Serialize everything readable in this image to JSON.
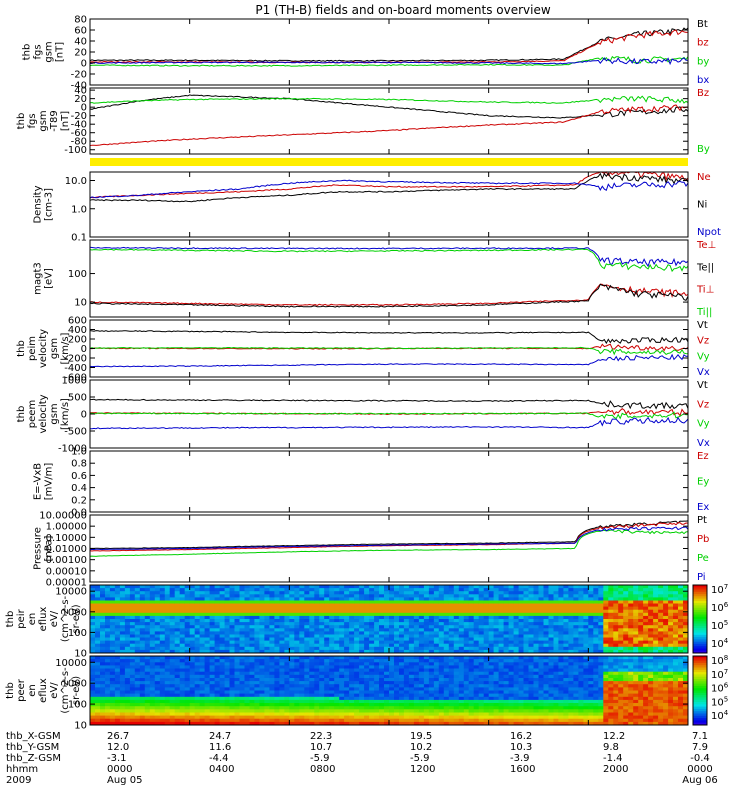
{
  "title": "P1 (TH-B) fields and on-board moments overview",
  "colors": {
    "black": "#000000",
    "red": "#cc0000",
    "green": "#00d000",
    "blue": "#0000cc",
    "yellow": "#ffee00"
  },
  "chart_data": [
    {
      "id": "fgs_gsm",
      "type": "line",
      "ylabel": [
        "thb",
        "fgs",
        "gsm",
        "[nT]"
      ],
      "yticks": [
        80,
        60,
        40,
        20,
        0,
        -20,
        -40
      ],
      "ylim": [
        -40,
        80
      ],
      "legend": [
        {
          "name": "Bt",
          "color": "black"
        },
        {
          "name": "bz",
          "color": "red"
        },
        {
          "name": "by",
          "color": "green"
        },
        {
          "name": "bx",
          "color": "blue"
        }
      ],
      "x_hours": [
        0,
        4,
        8,
        12,
        16,
        19,
        20.5,
        22,
        24
      ],
      "series": [
        {
          "name": "Bt",
          "color": "black",
          "y": [
            5,
            5,
            4,
            4,
            5,
            7,
            40,
            52,
            60
          ]
        },
        {
          "name": "bz",
          "color": "red",
          "y": [
            2,
            2,
            1,
            1,
            2,
            4,
            38,
            50,
            58
          ]
        },
        {
          "name": "by",
          "color": "green",
          "y": [
            -4,
            -5,
            -5,
            -4,
            -3,
            -4,
            10,
            5,
            8
          ]
        },
        {
          "name": "bx",
          "color": "blue",
          "y": [
            0,
            1,
            1,
            1,
            0,
            -1,
            5,
            2,
            4
          ]
        }
      ]
    },
    {
      "id": "fgs_gse",
      "type": "line",
      "ylabel": [
        "thb",
        "fgs",
        "gsm",
        "-T89",
        "[nT]"
      ],
      "yticks": [
        40,
        20,
        0,
        -20,
        -40,
        -60,
        -80,
        -100
      ],
      "ylim": [
        -110,
        45
      ],
      "legend": [
        {
          "name": "Bz",
          "color": "red"
        },
        {
          "name": "By",
          "color": "green"
        }
      ],
      "x_hours": [
        0,
        2,
        4,
        8,
        12,
        14,
        16,
        19,
        20.5,
        22,
        24
      ],
      "series": [
        {
          "name": "black",
          "color": "black",
          "y": [
            -5,
            15,
            28,
            20,
            0,
            -10,
            -20,
            -25,
            -18,
            -12,
            -5
          ]
        },
        {
          "name": "Bz",
          "color": "red",
          "y": [
            -90,
            -82,
            -75,
            -65,
            -55,
            -48,
            -42,
            -35,
            -10,
            -5,
            0
          ]
        },
        {
          "name": "By",
          "color": "green",
          "y": [
            10,
            15,
            18,
            20,
            18,
            15,
            12,
            10,
            18,
            20,
            15
          ]
        }
      ]
    },
    {
      "id": "density",
      "type": "line",
      "scale": "log",
      "ylabel": [
        "Density",
        "[cm-3]"
      ],
      "yticks": [
        "10.0",
        "1.0",
        "0.1"
      ],
      "ylim": [
        0.1,
        20
      ],
      "legend": [
        {
          "name": "Ne",
          "color": "red"
        },
        {
          "name": "Ni",
          "color": "black"
        },
        {
          "name": "Npot",
          "color": "blue"
        }
      ],
      "x_hours": [
        0,
        2,
        4,
        6,
        8,
        10,
        12,
        16,
        19.5,
        20.5,
        22,
        24
      ],
      "series": [
        {
          "name": "Ne",
          "color": "red",
          "y": [
            2.5,
            3,
            3.5,
            4,
            5,
            7,
            6,
            6,
            7,
            20,
            18,
            12
          ]
        },
        {
          "name": "Ni",
          "color": "black",
          "y": [
            2,
            2,
            1.8,
            2.5,
            3,
            4,
            4,
            5,
            5,
            15,
            13,
            9
          ]
        },
        {
          "name": "Npot",
          "color": "blue",
          "y": [
            2.5,
            3,
            4,
            5,
            8,
            10,
            9,
            8,
            8,
            6,
            7,
            8
          ]
        }
      ]
    },
    {
      "id": "temperature",
      "type": "line",
      "scale": "log",
      "ylabel": [
        "magt3",
        "[eV]"
      ],
      "yticks": [
        "100",
        "10"
      ],
      "ylim": [
        3,
        1500
      ],
      "legend": [
        {
          "name": "Te⊥",
          "color": "red"
        },
        {
          "name": "Te||",
          "color": "black"
        },
        {
          "name": "Ti⊥",
          "color": "red"
        },
        {
          "name": "Ti||",
          "color": "green"
        }
      ],
      "x_hours": [
        0,
        4,
        8,
        12,
        16,
        20,
        20.5,
        22,
        24
      ],
      "series": [
        {
          "name": "Ti",
          "color": "blue",
          "y": [
            800,
            780,
            760,
            760,
            770,
            780,
            300,
            250,
            250
          ]
        },
        {
          "name": "Ti||",
          "color": "green",
          "y": [
            700,
            650,
            600,
            620,
            650,
            700,
            200,
            180,
            150
          ]
        },
        {
          "name": "Te",
          "color": "red",
          "y": [
            10,
            9,
            8,
            8,
            9,
            12,
            40,
            25,
            20
          ]
        },
        {
          "name": "Te||",
          "color": "black",
          "y": [
            9,
            8,
            7,
            7,
            8,
            11,
            35,
            20,
            15
          ]
        }
      ]
    },
    {
      "id": "peim_velocity",
      "type": "line",
      "ylabel": [
        "thb",
        "peim",
        "velocity",
        "gsm",
        "[km/s]"
      ],
      "yticks": [
        600,
        400,
        200,
        0,
        -200,
        -400,
        -600
      ],
      "ylim": [
        -600,
        600
      ],
      "legend": [
        {
          "name": "Vt",
          "color": "black"
        },
        {
          "name": "Vz",
          "color": "red"
        },
        {
          "name": "Vy",
          "color": "green"
        },
        {
          "name": "Vx",
          "color": "blue"
        }
      ],
      "x_hours": [
        0,
        4,
        8,
        12,
        16,
        20,
        20.5,
        22,
        24
      ],
      "series": [
        {
          "name": "Vt",
          "color": "black",
          "y": [
            370,
            360,
            340,
            330,
            330,
            340,
            150,
            170,
            190
          ]
        },
        {
          "name": "Vz",
          "color": "red",
          "y": [
            5,
            0,
            -5,
            0,
            5,
            0,
            50,
            20,
            0
          ]
        },
        {
          "name": "Vy",
          "color": "green",
          "y": [
            10,
            15,
            10,
            5,
            10,
            15,
            -60,
            -80,
            -70
          ]
        },
        {
          "name": "Vx",
          "color": "blue",
          "y": [
            -380,
            -370,
            -350,
            -330,
            -330,
            -340,
            -220,
            -200,
            -180
          ]
        }
      ]
    },
    {
      "id": "peem_velocity",
      "type": "line",
      "ylabel": [
        "thb",
        "peem",
        "velocity",
        "gsm",
        "[km/s]"
      ],
      "yticks": [
        1000,
        500,
        0,
        -500,
        -1000
      ],
      "ylim": [
        -1000,
        1000
      ],
      "legend": [
        {
          "name": "Vt",
          "color": "black"
        },
        {
          "name": "Vz",
          "color": "red"
        },
        {
          "name": "Vy",
          "color": "green"
        },
        {
          "name": "Vx",
          "color": "blue"
        }
      ],
      "x_hours": [
        0,
        4,
        8,
        12,
        16,
        20,
        20.5,
        22,
        24
      ],
      "series": [
        {
          "name": "Vt",
          "color": "black",
          "y": [
            420,
            410,
            400,
            390,
            380,
            400,
            300,
            250,
            230
          ]
        },
        {
          "name": "Vz",
          "color": "red",
          "y": [
            30,
            20,
            10,
            0,
            10,
            20,
            80,
            60,
            40
          ]
        },
        {
          "name": "Vy",
          "color": "green",
          "y": [
            20,
            15,
            10,
            10,
            15,
            20,
            -100,
            -50,
            -30
          ]
        },
        {
          "name": "Vx",
          "color": "blue",
          "y": [
            -420,
            -410,
            -400,
            -390,
            -380,
            -400,
            -250,
            -200,
            -180
          ]
        }
      ]
    },
    {
      "id": "efield",
      "type": "line",
      "ylabel": [
        "E=-VxB",
        "[mV/m]"
      ],
      "yticks": [
        "1.0",
        "0.8",
        "0.6",
        "0.4",
        "0.2",
        "0.0"
      ],
      "ylim": [
        0,
        1
      ],
      "legend": [
        {
          "name": "Ez",
          "color": "red"
        },
        {
          "name": "Ey",
          "color": "green"
        },
        {
          "name": "Ex",
          "color": "blue"
        }
      ],
      "series": []
    },
    {
      "id": "pressure",
      "type": "line",
      "scale": "log",
      "ylabel": [
        "Pressure",
        "[nPa]"
      ],
      "yticks": [
        "10.00000",
        "1.00000",
        "0.10000",
        "0.01000",
        "0.00100",
        "0.00010",
        "0.00001"
      ],
      "ylim": [
        1e-05,
        10
      ],
      "legend": [
        {
          "name": "Pt",
          "color": "black"
        },
        {
          "name": "Pb",
          "color": "red"
        },
        {
          "name": "Pe",
          "color": "green"
        },
        {
          "name": "Pi",
          "color": "blue"
        }
      ],
      "x_hours": [
        0,
        4,
        8,
        12,
        16,
        19.5,
        20.5,
        22,
        24
      ],
      "series": [
        {
          "name": "Pt",
          "color": "black",
          "y": [
            0.01,
            0.012,
            0.018,
            0.025,
            0.03,
            0.04,
            0.9,
            1.5,
            2.5
          ]
        },
        {
          "name": "Pb",
          "color": "red",
          "y": [
            0.006,
            0.008,
            0.012,
            0.018,
            0.022,
            0.03,
            0.7,
            1.2,
            2
          ]
        },
        {
          "name": "Pe",
          "color": "green",
          "y": [
            0.002,
            0.003,
            0.005,
            0.007,
            0.008,
            0.01,
            0.4,
            0.3,
            0.25
          ]
        },
        {
          "name": "Pi",
          "color": "blue",
          "y": [
            0.008,
            0.01,
            0.015,
            0.02,
            0.025,
            0.03,
            0.5,
            0.6,
            0.7
          ]
        }
      ]
    },
    {
      "id": "peir_spectrogram",
      "type": "heatmap",
      "ylabel": [
        "thb",
        "peir",
        "en",
        "eflux",
        "eV/",
        "(cm^2-s-",
        "sr-eV)"
      ],
      "yticks": [
        10000,
        1000,
        100,
        10
      ],
      "ylim": [
        10,
        20000
      ],
      "colorbar_ticks": [
        "10^7",
        "10^6",
        "10^5",
        "10^4"
      ]
    },
    {
      "id": "peer_spectrogram",
      "type": "heatmap",
      "ylabel": [
        "thb",
        "peer",
        "en",
        "eflux",
        "eV/",
        "(cm^2-s-",
        "sr-eV)"
      ],
      "yticks": [
        10000,
        1000,
        100,
        10
      ],
      "ylim": [
        10,
        20000
      ],
      "colorbar_ticks": [
        "10^8",
        "10^7",
        "10^6",
        "10^5",
        "10^4"
      ]
    }
  ],
  "orbit_table": {
    "labels": [
      "thb_X-GSM",
      "thb_Y-GSM",
      "thb_Z-GSM",
      "hhmm",
      "2009"
    ],
    "columns": [
      [
        "26.7",
        "12.0",
        "-3.1",
        "0000",
        "Aug 05"
      ],
      [
        "24.7",
        "11.6",
        "-4.4",
        "0400",
        ""
      ],
      [
        "22.3",
        "10.7",
        "-5.9",
        "0800",
        ""
      ],
      [
        "19.5",
        "10.2",
        "-5.9",
        "1200",
        ""
      ],
      [
        "16.2",
        "10.3",
        "-3.9",
        "1600",
        ""
      ],
      [
        "12.2",
        "9.8",
        "-1.4",
        "2000",
        ""
      ],
      [
        "7.1",
        "7.9",
        "-0.4",
        "0000",
        "Aug 06"
      ]
    ]
  }
}
